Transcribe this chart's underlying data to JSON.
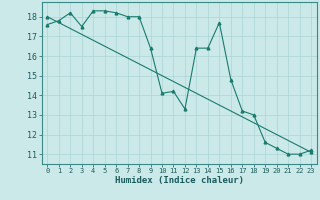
{
  "title": "",
  "xlabel": "Humidex (Indice chaleur)",
  "ylabel": "",
  "bg_color": "#cce9e9",
  "grid_color": "#aad4d4",
  "line_color": "#1a7a6e",
  "xlim": [
    -0.5,
    23.5
  ],
  "ylim": [
    10.5,
    18.75
  ],
  "yticks": [
    11,
    12,
    13,
    14,
    15,
    16,
    17,
    18
  ],
  "xticks": [
    0,
    1,
    2,
    3,
    4,
    5,
    6,
    7,
    8,
    9,
    10,
    11,
    12,
    13,
    14,
    15,
    16,
    17,
    18,
    19,
    20,
    21,
    22,
    23
  ],
  "series1_y": [
    17.6,
    17.8,
    18.2,
    17.5,
    18.3,
    18.3,
    18.2,
    18.0,
    18.0,
    16.4,
    14.1,
    14.2,
    13.3,
    16.4,
    16.4,
    17.7,
    14.8,
    13.2,
    13.0,
    11.6,
    11.3,
    11.0,
    11.0,
    11.2
  ],
  "trend_y_start": 18.0,
  "trend_y_end": 11.1
}
